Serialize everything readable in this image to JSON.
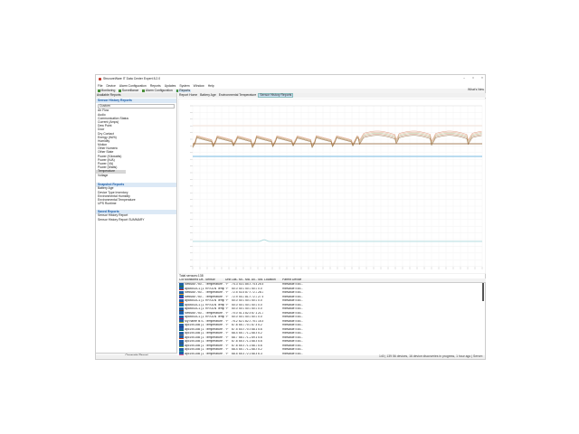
{
  "window": {
    "title": "StruxureWare IT Data Center Expert 8.2.0",
    "controls": [
      "–",
      "□",
      "×"
    ]
  },
  "menu": [
    "File",
    "Device",
    "Alarm Configuration",
    "Reports",
    "Updates",
    "System",
    "Window",
    "Help"
  ],
  "perspectives": [
    {
      "label": "Monitoring",
      "active": false
    },
    {
      "label": "Surveillance",
      "active": false
    },
    {
      "label": "Alarm Configuration",
      "active": false
    },
    {
      "label": "Reports",
      "active": true
    }
  ],
  "whats_new": "What's New",
  "left": {
    "title": "Available Reports",
    "sections": [
      {
        "title": "Sensor History Reports",
        "filter": "Custom",
        "items": [
          "Air Flow",
          "Audio",
          "Communication Status",
          "Current (Amps)",
          "Dew Point",
          "Door",
          "Dry Contact",
          "Energy (kWh)",
          "Humidity",
          "Motion",
          "Other Numeric",
          "Other State",
          "Power (Kilowatts)",
          "Power (kVA)",
          "Power (VA)",
          "Power (Watts)",
          "Temperature",
          "Voltage"
        ],
        "selected": "Temperature"
      },
      {
        "title": "Snapshot Reports",
        "items": [
          "Battery Age",
          "Device Type Inventory",
          "Environmental Humidity",
          "Environmental Temperature",
          "UPS Runtime"
        ]
      },
      {
        "title": "Saved Reports",
        "items": [
          "Sensor History Report",
          "Sensor History Report SUMMARY"
        ]
      }
    ],
    "generate": "Generate Report"
  },
  "tabs": [
    {
      "label": "Report Home",
      "active": false
    },
    {
      "label": "Battery Age",
      "active": false
    },
    {
      "label": "Environmental Temperature",
      "active": false
    },
    {
      "label": "Sensor History Reports",
      "active": true
    }
  ],
  "chart_colors": {
    "cluster": [
      "#d98b6a",
      "#e0a080",
      "#9fb87a",
      "#c77a5a",
      "#8a6a3a"
    ],
    "upper": "#e8c8b8",
    "blue": "#4aa3d8",
    "teal": "#9fd3d6"
  },
  "table": {
    "count_label": "Total sensors:138",
    "columns": [
      "Col.",
      "Monitored De...",
      "Sensor",
      "Units",
      "Las...",
      "Mi...",
      "Ma...",
      "Av...",
      "Std...",
      "Location",
      "Parent Device"
    ],
    "swatch_colors": [
      "#2e7d32",
      "#c62828",
      "#f9a825",
      "#6a1b9a",
      "#ef6c00",
      "#00838f",
      "#5d4037",
      "#1565c0",
      "#ad1457",
      "#9e9d24",
      "#283593",
      "#00695c",
      "#8d6e63",
      "#d84315",
      "#455a64",
      "#7cb342",
      "#26a69a",
      "#f06292"
    ],
    "rows": [
      [
        "NetBotz 750...",
        "Temperature ...",
        "°F",
        "74.3",
        "53.0",
        "85.5",
        "74.6",
        "25.6",
        "",
        "mibvalue Eco..."
      ],
      [
        "apc8543C1 (1...",
        "RF/DLN Temp...",
        "°F",
        "50.0",
        "50.0",
        "50.0",
        "50.0",
        "0.0",
        "",
        "mibvalue Eco..."
      ],
      [
        "NetBotz 750...",
        "Temperature ...",
        "°F",
        "72.5",
        "53.6",
        "87.9",
        "72.3",
        "28.3",
        "",
        "mibvalue Eco..."
      ],
      [
        "NetBotz 750...",
        "Temperature ...",
        "°F",
        "72.9",
        "54.3",
        "81.9",
        "72.3",
        "27.6",
        "",
        "mibvalue Eco..."
      ],
      [
        "apc8543C1 (1...",
        "RF/DLN Temp...",
        "°F",
        "50.0",
        "50.0",
        "50.0",
        "50.0",
        "0.0",
        "",
        "mibvalue Eco..."
      ],
      [
        "apc8543C1 (1...",
        "RF/DLN Temp...",
        "°F",
        "50.0",
        "50.0",
        "50.0",
        "50.0",
        "0.0",
        "",
        "mibvalue Eco..."
      ],
      [
        "apc8543C1 (1...",
        "RF/DLN Temp...",
        "°F",
        "50.0",
        "50.0",
        "50.0",
        "50.0",
        "0.0",
        "",
        "mibvalue Eco..."
      ],
      [
        "NetBotz 750...",
        "Temperature ...",
        "°F",
        "70.0",
        "51.1",
        "82.8",
        "67.1",
        "21.7",
        "",
        "mibvalue Eco..."
      ],
      [
        "apc8543C1 (1...",
        "RF/DLN Temp...",
        "°F",
        "50.0",
        "50.0",
        "50.0",
        "50.0",
        "0.0",
        "",
        "mibvalue Eco..."
      ],
      [
        "My name is S...",
        "Temperature ...",
        "°F",
        "75.2",
        "62.0",
        "82.4",
        "75.0",
        "15.8",
        "",
        "mibvalue Eco..."
      ],
      [
        "apc19015B (1...",
        "Temperature ...",
        "°F",
        "67.8",
        "65.7",
        "70.0",
        "67.8",
        "5.2",
        "",
        "mibvalue Eco..."
      ],
      [
        "apc19015B (1...",
        "Temperature ...",
        "°F",
        "67.5",
        "64.9",
        "70.5",
        "68.1",
        "5.6",
        "",
        "mibvalue Eco..."
      ],
      [
        "apc19015B (1...",
        "Temperature ...",
        "°F",
        "68.4",
        "65.7",
        "71.2",
        "68.5",
        "5.2",
        "",
        "mibvalue Eco..."
      ],
      [
        "apc19015B (1...",
        "Temperature ...",
        "°F",
        "68.7",
        "66.0",
        "71.2",
        "69.1",
        "5.6",
        "",
        "mibvalue Eco..."
      ],
      [
        "apc19015B (1...",
        "Temperature ...",
        "°F",
        "67.8",
        "65.5",
        "71.1",
        "68.5",
        "5.6",
        "",
        "mibvalue Eco..."
      ],
      [
        "apc19015B (1...",
        "Temperature ...",
        "°F",
        "67.8",
        "65.5",
        "71.1",
        "68.3",
        "5.6",
        "",
        "mibvalue Eco..."
      ],
      [
        "apc19015B (1...",
        "Temperature ...",
        "°F",
        "68.4",
        "65.7",
        "71.2",
        "68.4",
        "5.2",
        "",
        "mibvalue Eco..."
      ],
      [
        "apc19015B (1...",
        "Temperature ...",
        "°F",
        "68.5",
        "65.8",
        "72.1",
        "68.8",
        "6.3",
        "",
        "mibvalue Eco..."
      ]
    ]
  },
  "status": "140 | 139 56 devices, 16 device discoveries in progress, 1 hour ago | Server: "
}
